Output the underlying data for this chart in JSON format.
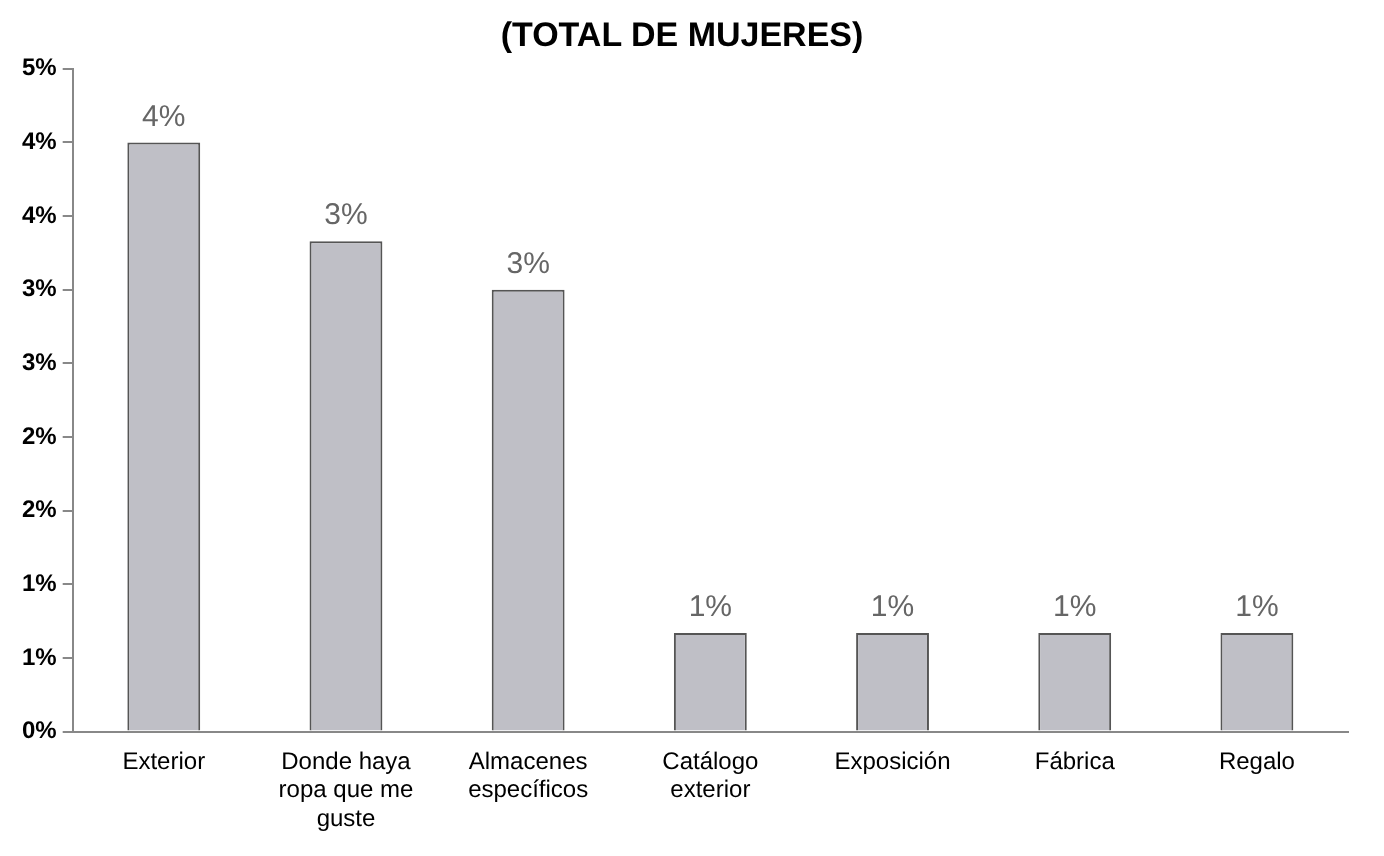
{
  "chart_data": {
    "type": "bar",
    "title": "(TOTAL DE MUJERES)",
    "categories": [
      "Exterior",
      "Donde haya ropa que me guste",
      "Almacenes específicos",
      "Catálogo exterior",
      "Exposición",
      "Fábrica",
      "Regalo"
    ],
    "values": [
      4.0,
      3.33,
      3.0,
      0.67,
      0.67,
      0.67,
      0.67
    ],
    "value_labels": [
      "4%",
      "3%",
      "3%",
      "1%",
      "1%",
      "1%",
      "1%"
    ],
    "color": "#bfbfc6",
    "ylim": [
      0,
      4.5
    ],
    "yticks": [
      {
        "value": 0,
        "label": "0%"
      },
      {
        "value": 0.5,
        "label": "1%"
      },
      {
        "value": 1,
        "label": "1%"
      },
      {
        "value": 1.5,
        "label": "2%"
      },
      {
        "value": 2,
        "label": "2%"
      },
      {
        "value": 2.5,
        "label": "3%"
      },
      {
        "value": 3,
        "label": "3%"
      },
      {
        "value": 3.5,
        "label": "4%"
      },
      {
        "value": 4,
        "label": "4%"
      },
      {
        "value": 4.5,
        "label": "5%"
      }
    ],
    "grid": false,
    "legend": false
  }
}
